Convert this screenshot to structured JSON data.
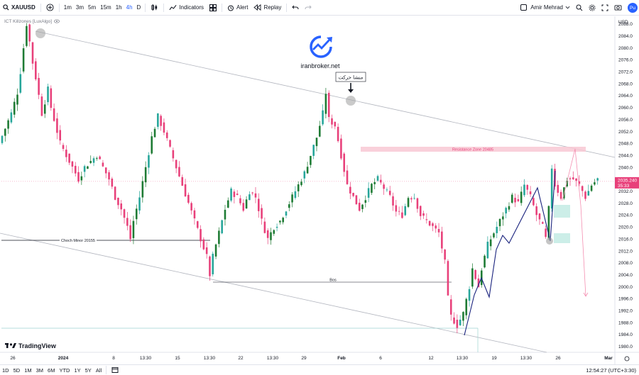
{
  "toolbar": {
    "symbol": "XAUUSD",
    "intervals": [
      "1m",
      "3m",
      "5m",
      "15m",
      "1h",
      "4h",
      "D"
    ],
    "active_interval": "4h",
    "indicators_label": "Indicators",
    "alert_label": "Alert",
    "replay_label": "Replay",
    "user_name": "Amir Mehrad",
    "publish_label": "Pu"
  },
  "chart_header": {
    "indicator_name": "ICT Killzones [LuxAlgo]",
    "currency": "USD"
  },
  "watermark": {
    "site": "iranbroker.net"
  },
  "annotations": {
    "arabic_label": "منشا حرکت",
    "resistance_label": "Resistance Zone 20485",
    "choch_label": "Choch Minor 20155",
    "bos_label": "Bos"
  },
  "price_tag": {
    "price": "2035.240",
    "countdown": "35:33"
  },
  "brand": {
    "logo_text": "TradingView"
  },
  "bottom": {
    "ranges": [
      "1D",
      "5D",
      "1M",
      "3M",
      "6M",
      "YTD",
      "1Y",
      "5Y",
      "All"
    ],
    "clock": "12:54:27 (UTC+3:30)"
  },
  "chart_data": {
    "type": "candlestick",
    "symbol": "XAUUSD",
    "timeframe": "4h",
    "y_ticks": [
      2088,
      2084,
      2080,
      2076,
      2072,
      2068,
      2064,
      2060,
      2056,
      2052,
      2048,
      2044,
      2040,
      2036,
      2032,
      2028,
      2024,
      2020,
      2016,
      2012,
      2008,
      2004,
      2000,
      1996,
      1992,
      1988,
      1984,
      1980
    ],
    "x_ticks": [
      "26",
      "2024",
      "8",
      "13:30",
      "15",
      "13:30",
      "22",
      "13:30",
      "29",
      "Feb",
      "6",
      "12",
      "13:30",
      "19",
      "13:30",
      "26",
      "Mar"
    ],
    "ylim": [
      1978,
      2091
    ],
    "last_price": 2035.24,
    "resistance_zone": [
      2047.5,
      2048.5
    ],
    "choch_level": 2015.5,
    "bos_level": 2001.5,
    "colors": {
      "up": "#26a69a",
      "up_dark": "#1e7b34",
      "down": "#e8407a",
      "accent": "#2962ff"
    },
    "price_path": [
      [
        0,
        2048
      ],
      [
        2,
        2053
      ],
      [
        4,
        2058
      ],
      [
        6,
        2065
      ],
      [
        7,
        2072
      ],
      [
        8,
        2080
      ],
      [
        9,
        2088
      ],
      [
        10,
        2082
      ],
      [
        11,
        2075
      ],
      [
        12,
        2070
      ],
      [
        13,
        2064
      ],
      [
        14,
        2058
      ],
      [
        15,
        2062
      ],
      [
        16,
        2066
      ],
      [
        17,
        2060
      ],
      [
        18,
        2056
      ],
      [
        19,
        2052
      ],
      [
        20,
        2048
      ],
      [
        22,
        2044
      ],
      [
        24,
        2040
      ],
      [
        26,
        2036
      ],
      [
        27,
        2038
      ],
      [
        28,
        2040
      ],
      [
        30,
        2042
      ],
      [
        32,
        2044
      ],
      [
        34,
        2040
      ],
      [
        36,
        2036
      ],
      [
        38,
        2030
      ],
      [
        40,
        2026
      ],
      [
        42,
        2020
      ],
      [
        43,
        2016
      ],
      [
        44,
        2022
      ],
      [
        46,
        2030
      ],
      [
        48,
        2040
      ],
      [
        50,
        2050
      ],
      [
        52,
        2057
      ],
      [
        54,
        2052
      ],
      [
        56,
        2046
      ],
      [
        58,
        2040
      ],
      [
        60,
        2034
      ],
      [
        62,
        2028
      ],
      [
        64,
        2022
      ],
      [
        66,
        2016
      ],
      [
        68,
        2010
      ],
      [
        69,
        2004
      ],
      [
        70,
        2010
      ],
      [
        72,
        2018
      ],
      [
        74,
        2026
      ],
      [
        76,
        2032
      ],
      [
        78,
        2030
      ],
      [
        80,
        2026
      ],
      [
        82,
        2032
      ],
      [
        84,
        2030
      ],
      [
        86,
        2022
      ],
      [
        88,
        2016
      ],
      [
        90,
        2020
      ],
      [
        92,
        2022
      ],
      [
        94,
        2026
      ],
      [
        96,
        2030
      ],
      [
        98,
        2034
      ],
      [
        100,
        2038
      ],
      [
        102,
        2044
      ],
      [
        104,
        2050
      ],
      [
        106,
        2058
      ],
      [
        107,
        2065
      ],
      [
        108,
        2056
      ],
      [
        110,
        2054
      ],
      [
        112,
        2044
      ],
      [
        114,
        2034
      ],
      [
        116,
        2030
      ],
      [
        118,
        2026
      ],
      [
        120,
        2030
      ],
      [
        122,
        2034
      ],
      [
        124,
        2036
      ],
      [
        126,
        2033
      ],
      [
        128,
        2030
      ],
      [
        130,
        2025
      ],
      [
        132,
        2024
      ],
      [
        134,
        2030
      ],
      [
        136,
        2030
      ],
      [
        138,
        2024
      ],
      [
        140,
        2022
      ],
      [
        142,
        2020
      ],
      [
        144,
        2018
      ],
      [
        146,
        2008
      ],
      [
        147,
        1996
      ],
      [
        148,
        1990
      ],
      [
        150,
        1987
      ],
      [
        152,
        1991
      ],
      [
        154,
        2000
      ],
      [
        155,
        2006
      ],
      [
        156,
        2003
      ],
      [
        157,
        2000
      ],
      [
        158,
        2006
      ],
      [
        160,
        2014
      ],
      [
        162,
        2018
      ],
      [
        164,
        2022
      ],
      [
        166,
        2026
      ],
      [
        168,
        2030
      ],
      [
        170,
        2028
      ],
      [
        172,
        2034
      ],
      [
        174,
        2030
      ],
      [
        176,
        2024
      ],
      [
        178,
        2020
      ],
      [
        179,
        2016
      ],
      [
        180,
        2026
      ],
      [
        181,
        2040
      ],
      [
        182,
        2034
      ],
      [
        184,
        2030
      ],
      [
        186,
        2036
      ],
      [
        188,
        2036
      ],
      [
        190,
        2034
      ],
      [
        192,
        2030
      ],
      [
        194,
        2034
      ],
      [
        196,
        2036
      ]
    ]
  }
}
